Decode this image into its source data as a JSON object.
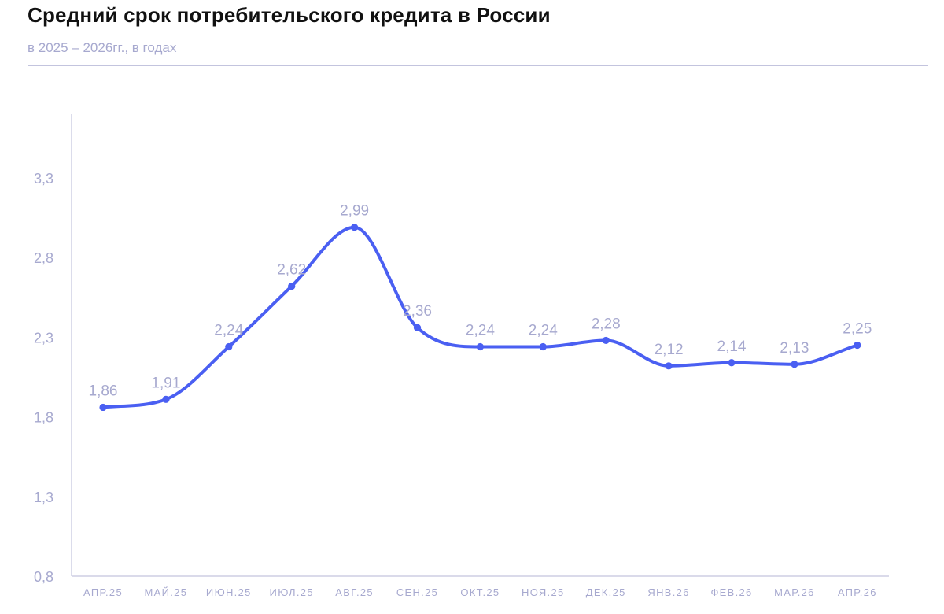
{
  "header": {
    "title": "Средний срок потребительского кредита в России",
    "subtitle": "в 2025 – 2026гг., в годах"
  },
  "colors": {
    "line": "#4a5ff2",
    "axis": "#c3c4de",
    "labels": "#a7a9cf"
  },
  "chart_data": {
    "type": "line",
    "title": "Средний срок потребительского кредита в России",
    "subtitle": "в 2025 – 2026гг., в годах",
    "xlabel": "",
    "ylabel": "",
    "categories": [
      "АПР.25",
      "МАЙ.25",
      "ИЮН.25",
      "ИЮЛ.25",
      "АВГ.25",
      "СЕН.25",
      "ОКТ.25",
      "НОЯ.25",
      "ДЕК.25",
      "ЯНВ.26",
      "ФЕВ.26",
      "МАР.26",
      "АПР.26"
    ],
    "values": [
      1.86,
      1.91,
      2.24,
      2.62,
      2.99,
      2.36,
      2.24,
      2.24,
      2.28,
      2.12,
      2.14,
      2.13,
      2.25
    ],
    "value_labels": [
      "1,86",
      "1,91",
      "2,24",
      "2,62",
      "2,99",
      "2,36",
      "2,24",
      "2,24",
      "2,28",
      "2,12",
      "2,14",
      "2,13",
      "2,25"
    ],
    "y_ticks": [
      0.8,
      1.3,
      1.8,
      2.3,
      2.8,
      3.3
    ],
    "y_tick_labels": [
      "0,8",
      "1,3",
      "1,8",
      "2,3",
      "2,8",
      "3,3"
    ],
    "ylim": [
      0.8,
      3.7
    ],
    "grid": false,
    "smooth": true,
    "markers": true,
    "legend": "none"
  }
}
